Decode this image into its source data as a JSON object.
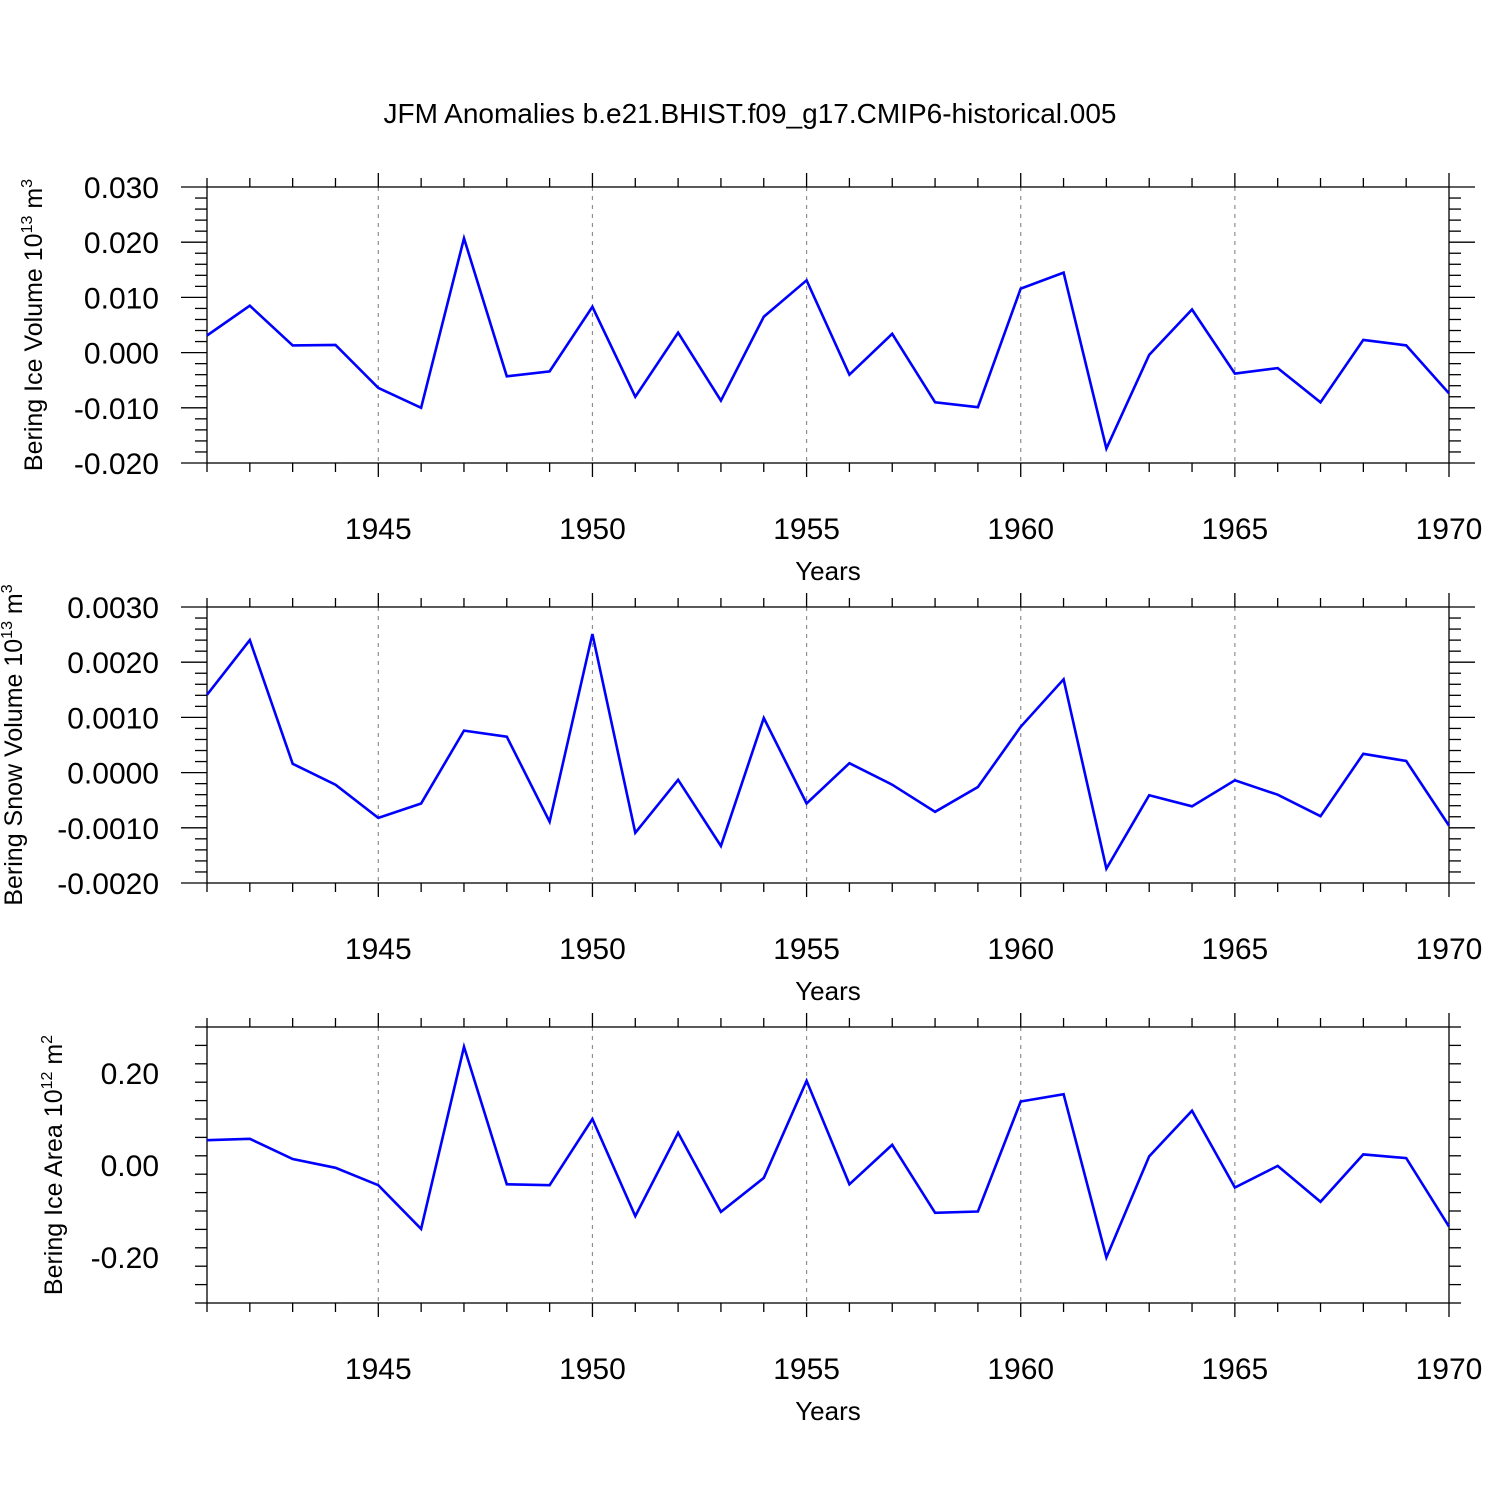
{
  "title": "JFM Anomalies b.e21.BHIST.f09_g17.CMIP6-historical.005",
  "colors": {
    "series": "#0000ff",
    "grid": "#8f8f8f",
    "axis": "#000000"
  },
  "chart_data": [
    {
      "type": "line",
      "ylabel": "Bering Ice Volume 10",
      "ylabel_exp": "13",
      "ylabel_unit": " m",
      "ylabel_unit_exp": "3",
      "xlabel": "Years",
      "xlim": [
        1941,
        1970
      ],
      "ylim": [
        -0.02,
        0.03
      ],
      "yticks": [
        "-0.020",
        "-0.010",
        "0.000",
        "0.010",
        "0.020",
        "0.030"
      ],
      "xticks": [
        "1945",
        "1950",
        "1955",
        "1960",
        "1965",
        "1970"
      ],
      "x": [
        1941,
        1942,
        1943,
        1944,
        1945,
        1946,
        1947,
        1948,
        1949,
        1950,
        1951,
        1952,
        1953,
        1954,
        1955,
        1956,
        1957,
        1958,
        1959,
        1960,
        1961,
        1962,
        1963,
        1964,
        1965,
        1966,
        1967,
        1968,
        1969,
        1970
      ],
      "values": [
        0.0031,
        0.0085,
        0.0013,
        0.0014,
        -0.0064,
        -0.01,
        0.0207,
        -0.0043,
        -0.0034,
        0.0083,
        -0.008,
        0.0036,
        -0.0087,
        0.0065,
        0.0131,
        -0.004,
        0.0034,
        -0.009,
        -0.0099,
        0.0116,
        0.0145,
        -0.0174,
        -0.0004,
        0.0078,
        -0.0038,
        -0.0028,
        -0.009,
        0.0023,
        0.0013,
        -0.0074
      ]
    },
    {
      "type": "line",
      "ylabel": "Bering Snow Volume 10",
      "ylabel_exp": "13",
      "ylabel_unit": " m",
      "ylabel_unit_exp": "3",
      "xlabel": "Years",
      "xlim": [
        1941,
        1970
      ],
      "ylim": [
        -0.002,
        0.003
      ],
      "yticks": [
        "-0.0020",
        "-0.0010",
        "0.0000",
        "0.0010",
        "0.0020",
        "0.0030"
      ],
      "xticks": [
        "1945",
        "1950",
        "1955",
        "1960",
        "1965",
        "1970"
      ],
      "x": [
        1941,
        1942,
        1943,
        1944,
        1945,
        1946,
        1947,
        1948,
        1949,
        1950,
        1951,
        1952,
        1953,
        1954,
        1955,
        1956,
        1957,
        1958,
        1959,
        1960,
        1961,
        1962,
        1963,
        1964,
        1965,
        1966,
        1967,
        1968,
        1969,
        1970
      ],
      "values": [
        0.00141,
        0.0024,
        0.00016,
        -0.00022,
        -0.00082,
        -0.00056,
        0.00076,
        0.00065,
        -0.00089,
        0.00251,
        -0.00109,
        -0.00013,
        -0.00133,
        0.00099,
        -0.00056,
        0.00017,
        -0.00022,
        -0.00071,
        -0.00026,
        0.00083,
        0.00169,
        -0.00174,
        -0.00041,
        -0.00061,
        -0.00014,
        -0.0004,
        -0.00079,
        0.00034,
        0.00021,
        -0.00096
      ]
    },
    {
      "type": "line",
      "ylabel": "Bering Ice Area 10",
      "ylabel_exp": "12",
      "ylabel_unit": " m",
      "ylabel_unit_exp": "2",
      "xlabel": "Years",
      "xlim": [
        1941,
        1970
      ],
      "ylim": [
        -0.3,
        0.3
      ],
      "yticks": [
        "-0.20",
        "0.00",
        "0.20"
      ],
      "xticks": [
        "1945",
        "1950",
        "1955",
        "1960",
        "1965",
        "1970"
      ],
      "x": [
        1941,
        1942,
        1943,
        1944,
        1945,
        1946,
        1947,
        1948,
        1949,
        1950,
        1951,
        1952,
        1953,
        1954,
        1955,
        1956,
        1957,
        1958,
        1959,
        1960,
        1961,
        1962,
        1963,
        1964,
        1965,
        1966,
        1967,
        1968,
        1969,
        1970
      ],
      "values": [
        0.054,
        0.057,
        0.013,
        -0.006,
        -0.044,
        -0.139,
        0.257,
        -0.042,
        -0.044,
        0.1,
        -0.111,
        0.07,
        -0.102,
        -0.028,
        0.183,
        -0.042,
        0.044,
        -0.104,
        -0.101,
        0.138,
        0.154,
        -0.201,
        0.019,
        0.118,
        -0.049,
        -0.002,
        -0.08,
        0.023,
        0.015,
        -0.134
      ]
    }
  ]
}
